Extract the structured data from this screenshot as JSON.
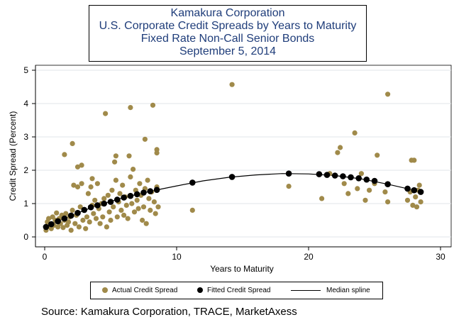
{
  "chart_data": {
    "type": "scatter",
    "title": "Kamakura Corporation",
    "subtitle": [
      "U.S. Corporate Credit Spreads by Years to Maturity",
      "Fixed Rate Non-Call Senior Bonds",
      "September 5, 2014"
    ],
    "xlabel": "Years to Maturity",
    "ylabel": "Credit Spread (Percent)",
    "xlim": [
      0,
      30
    ],
    "ylim": [
      0,
      5
    ],
    "xticks": [
      "0",
      "10",
      "20",
      "30"
    ],
    "yticks": [
      "0",
      "1",
      "2",
      "3",
      "4",
      "5"
    ],
    "grid": "horizontal",
    "legend_position": "bottom",
    "series": [
      {
        "name": "Actual Credit Spread",
        "color": "#a08a4a",
        "points": [
          [
            0.1,
            0.2
          ],
          [
            0.2,
            0.45
          ],
          [
            0.3,
            0.55
          ],
          [
            0.4,
            0.3
          ],
          [
            0.5,
            0.25
          ],
          [
            0.6,
            0.6
          ],
          [
            0.7,
            0.35
          ],
          [
            0.8,
            0.5
          ],
          [
            0.9,
            0.72
          ],
          [
            1.0,
            0.3
          ],
          [
            1.1,
            0.55
          ],
          [
            1.2,
            0.4
          ],
          [
            1.3,
            0.65
          ],
          [
            1.4,
            0.28
          ],
          [
            1.5,
            0.5
          ],
          [
            1.5,
            2.47
          ],
          [
            1.6,
            0.7
          ],
          [
            1.7,
            0.35
          ],
          [
            1.8,
            0.45
          ],
          [
            1.9,
            0.6
          ],
          [
            2.0,
            0.2
          ],
          [
            2.1,
            0.8
          ],
          [
            2.1,
            2.8
          ],
          [
            2.2,
            1.55
          ],
          [
            2.3,
            0.4
          ],
          [
            2.4,
            0.65
          ],
          [
            2.5,
            1.5
          ],
          [
            2.5,
            2.1
          ],
          [
            2.6,
            0.3
          ],
          [
            2.7,
            0.9
          ],
          [
            2.8,
            1.6
          ],
          [
            2.8,
            2.15
          ],
          [
            2.9,
            0.5
          ],
          [
            3.0,
            0.8
          ],
          [
            3.1,
            0.25
          ],
          [
            3.2,
            0.6
          ],
          [
            3.3,
            1.3
          ],
          [
            3.4,
            0.45
          ],
          [
            3.5,
            1.5
          ],
          [
            3.6,
            0.95
          ],
          [
            3.6,
            1.75
          ],
          [
            3.7,
            0.7
          ],
          [
            3.8,
            1.1
          ],
          [
            3.9,
            0.55
          ],
          [
            4.0,
            1.6
          ],
          [
            4.1,
            0.85
          ],
          [
            4.2,
            0.4
          ],
          [
            4.3,
            1.0
          ],
          [
            4.4,
            0.6
          ],
          [
            4.5,
            1.15
          ],
          [
            4.6,
            3.7
          ],
          [
            4.7,
            0.3
          ],
          [
            4.8,
            1.25
          ],
          [
            4.9,
            0.75
          ],
          [
            5.0,
            0.5
          ],
          [
            5.1,
            1.4
          ],
          [
            5.2,
            0.9
          ],
          [
            5.3,
            2.25
          ],
          [
            5.4,
            1.7
          ],
          [
            5.4,
            2.43
          ],
          [
            5.5,
            0.6
          ],
          [
            5.6,
            1.05
          ],
          [
            5.7,
            1.3
          ],
          [
            5.8,
            0.8
          ],
          [
            5.9,
            1.55
          ],
          [
            6.0,
            0.65
          ],
          [
            6.1,
            1.2
          ],
          [
            6.2,
            0.95
          ],
          [
            6.3,
            0.55
          ],
          [
            6.4,
            2.43
          ],
          [
            6.5,
            1.8
          ],
          [
            6.5,
            3.88
          ],
          [
            6.6,
            1.0
          ],
          [
            6.7,
            2.03
          ],
          [
            6.8,
            0.75
          ],
          [
            6.9,
            1.4
          ],
          [
            7.0,
            1.1
          ],
          [
            7.1,
            0.85
          ],
          [
            7.2,
            1.6
          ],
          [
            7.3,
            1.25
          ],
          [
            7.4,
            0.5
          ],
          [
            7.5,
            0.9
          ],
          [
            7.6,
            1.45
          ],
          [
            7.6,
            2.93
          ],
          [
            7.7,
            0.4
          ],
          [
            7.8,
            1.7
          ],
          [
            7.9,
            1.15
          ],
          [
            8.0,
            0.8
          ],
          [
            8.1,
            1.35
          ],
          [
            8.2,
            3.95
          ],
          [
            8.3,
            1.05
          ],
          [
            8.4,
            0.7
          ],
          [
            8.5,
            1.5
          ],
          [
            8.5,
            2.52
          ],
          [
            8.5,
            2.62
          ],
          [
            8.6,
            0.9
          ],
          [
            11.2,
            0.8
          ],
          [
            14.2,
            4.57
          ],
          [
            18.5,
            1.52
          ],
          [
            21.0,
            1.15
          ],
          [
            21.6,
            1.9
          ],
          [
            22.2,
            2.53
          ],
          [
            22.4,
            2.68
          ],
          [
            22.7,
            1.6
          ],
          [
            23.0,
            1.3
          ],
          [
            23.2,
            1.78
          ],
          [
            23.5,
            3.12
          ],
          [
            23.7,
            1.45
          ],
          [
            24.0,
            1.9
          ],
          [
            24.3,
            1.1
          ],
          [
            24.6,
            1.4
          ],
          [
            25.0,
            1.6
          ],
          [
            25.2,
            2.45
          ],
          [
            25.8,
            1.35
          ],
          [
            26.0,
            1.05
          ],
          [
            26.0,
            4.28
          ],
          [
            27.5,
            1.1
          ],
          [
            27.7,
            1.35
          ],
          [
            27.8,
            2.3
          ],
          [
            27.9,
            0.95
          ],
          [
            28.0,
            2.3
          ],
          [
            28.1,
            1.2
          ],
          [
            28.2,
            0.9
          ],
          [
            28.3,
            1.4
          ],
          [
            28.4,
            1.55
          ],
          [
            28.5,
            1.05
          ]
        ]
      },
      {
        "name": "Fitted Credit Spread",
        "color": "#000000",
        "points": [
          [
            0.1,
            0.3
          ],
          [
            0.5,
            0.38
          ],
          [
            1.0,
            0.47
          ],
          [
            1.5,
            0.55
          ],
          [
            2.0,
            0.64
          ],
          [
            2.5,
            0.72
          ],
          [
            3.0,
            0.81
          ],
          [
            3.5,
            0.89
          ],
          [
            4.0,
            0.95
          ],
          [
            4.5,
            1.0
          ],
          [
            5.0,
            1.05
          ],
          [
            5.5,
            1.12
          ],
          [
            6.0,
            1.18
          ],
          [
            6.5,
            1.23
          ],
          [
            7.0,
            1.28
          ],
          [
            7.5,
            1.33
          ],
          [
            8.0,
            1.37
          ],
          [
            8.5,
            1.41
          ],
          [
            11.2,
            1.63
          ],
          [
            14.2,
            1.8
          ],
          [
            18.5,
            1.9
          ],
          [
            20.8,
            1.88
          ],
          [
            21.4,
            1.86
          ],
          [
            22.0,
            1.84
          ],
          [
            22.6,
            1.82
          ],
          [
            23.2,
            1.79
          ],
          [
            23.8,
            1.76
          ],
          [
            24.4,
            1.72
          ],
          [
            25.0,
            1.68
          ],
          [
            26.0,
            1.58
          ],
          [
            27.5,
            1.45
          ],
          [
            28.0,
            1.4
          ],
          [
            28.5,
            1.35
          ]
        ]
      },
      {
        "name": "Median spline",
        "color": "#000000",
        "points": [
          [
            0,
            0.3
          ],
          [
            2,
            0.64
          ],
          [
            4,
            0.95
          ],
          [
            6,
            1.18
          ],
          [
            8,
            1.37
          ],
          [
            10,
            1.53
          ],
          [
            12,
            1.68
          ],
          [
            14,
            1.79
          ],
          [
            16,
            1.86
          ],
          [
            18,
            1.9
          ],
          [
            20,
            1.89
          ],
          [
            22,
            1.84
          ],
          [
            24,
            1.74
          ],
          [
            26,
            1.58
          ],
          [
            28,
            1.4
          ],
          [
            28.5,
            1.35
          ]
        ]
      }
    ]
  },
  "source": "Source: Kamakura Corporation, TRACE, MarketAxess"
}
